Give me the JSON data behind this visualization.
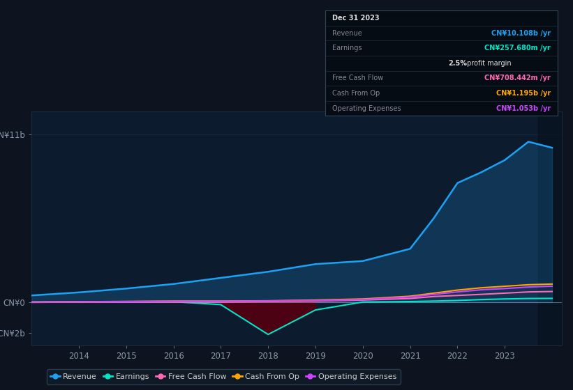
{
  "background_color": "#0d1420",
  "chart_bg_color": "#0d1b2e",
  "years": [
    2013.0,
    2013.5,
    2014.0,
    2015.0,
    2016.0,
    2017.0,
    2018.0,
    2019.0,
    2020.0,
    2021.0,
    2021.5,
    2022.0,
    2022.5,
    2023.0,
    2023.5,
    2024.0
  ],
  "revenue": [
    0.45,
    0.55,
    0.65,
    0.9,
    1.2,
    1.6,
    2.0,
    2.5,
    2.7,
    3.5,
    5.5,
    7.8,
    8.5,
    9.3,
    10.5,
    10.108
  ],
  "earnings": [
    0.02,
    0.03,
    0.04,
    0.05,
    0.04,
    -0.15,
    -2.1,
    -0.5,
    0.02,
    0.05,
    0.08,
    0.12,
    0.18,
    0.22,
    0.25,
    0.2576
  ],
  "free_cash_flow": [
    0.0,
    0.01,
    0.02,
    0.02,
    0.02,
    0.02,
    0.05,
    0.08,
    0.15,
    0.25,
    0.38,
    0.45,
    0.52,
    0.6,
    0.68,
    0.708
  ],
  "cash_from_op": [
    0.02,
    0.03,
    0.04,
    0.06,
    0.08,
    0.08,
    0.1,
    0.15,
    0.22,
    0.4,
    0.6,
    0.8,
    0.95,
    1.05,
    1.15,
    1.195
  ],
  "operating_expenses": [
    0.02,
    0.02,
    0.03,
    0.05,
    0.07,
    0.07,
    0.09,
    0.12,
    0.18,
    0.35,
    0.52,
    0.68,
    0.82,
    0.9,
    1.0,
    1.053
  ],
  "revenue_color": "#1da1f2",
  "earnings_color": "#00e5c8",
  "free_cash_flow_color": "#ff69b4",
  "cash_from_op_color": "#ffa500",
  "operating_expenses_color": "#cc44ff",
  "earnings_fill_color": "#550011",
  "ylim_min": -2.8,
  "ylim_max": 12.5,
  "ytick_vals": [
    -2,
    0,
    11
  ],
  "ytick_labels": [
    "-CN¥2b",
    "CN¥0",
    "CN¥11b"
  ],
  "xtick_years": [
    2014,
    2015,
    2016,
    2017,
    2018,
    2019,
    2020,
    2021,
    2022,
    2023
  ],
  "legend_labels": [
    "Revenue",
    "Earnings",
    "Free Cash Flow",
    "Cash From Op",
    "Operating Expenses"
  ],
  "tooltip_date": "Dec 31 2023",
  "tooltip_revenue_label": "Revenue",
  "tooltip_revenue_val": "CN¥10.108b /yr",
  "tooltip_earnings_label": "Earnings",
  "tooltip_earnings_val": "CN¥257.680m /yr",
  "tooltip_margin": "2.5% profit margin",
  "tooltip_fcf_label": "Free Cash Flow",
  "tooltip_fcf_val": "CN¥708.442m /yr",
  "tooltip_cashop_label": "Cash From Op",
  "tooltip_cashop_val": "CN¥1.195b /yr",
  "tooltip_opex_label": "Operating Expenses",
  "tooltip_opex_val": "CN¥1.053b /yr"
}
